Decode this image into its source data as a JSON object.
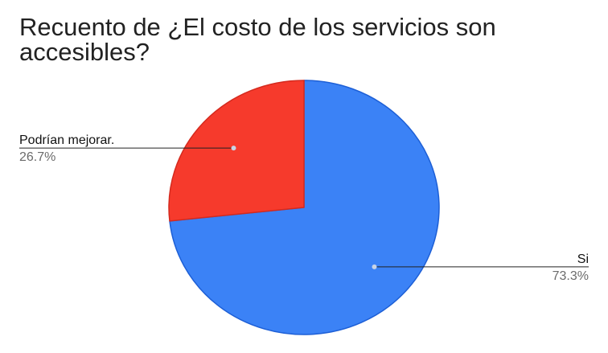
{
  "chart_data": {
    "type": "pie",
    "title": "Recuento de ¿El costo de los servicios son accesibles?",
    "slices": [
      {
        "label": "Si",
        "value": 73.3,
        "percent_label": "73.3%",
        "color": "#3b82f6"
      },
      {
        "label": "Podrían mejorar.",
        "value": 26.7,
        "percent_label": "26.7%",
        "color": "#f63a2c"
      }
    ],
    "legend": "none",
    "data_labels": "outside"
  }
}
